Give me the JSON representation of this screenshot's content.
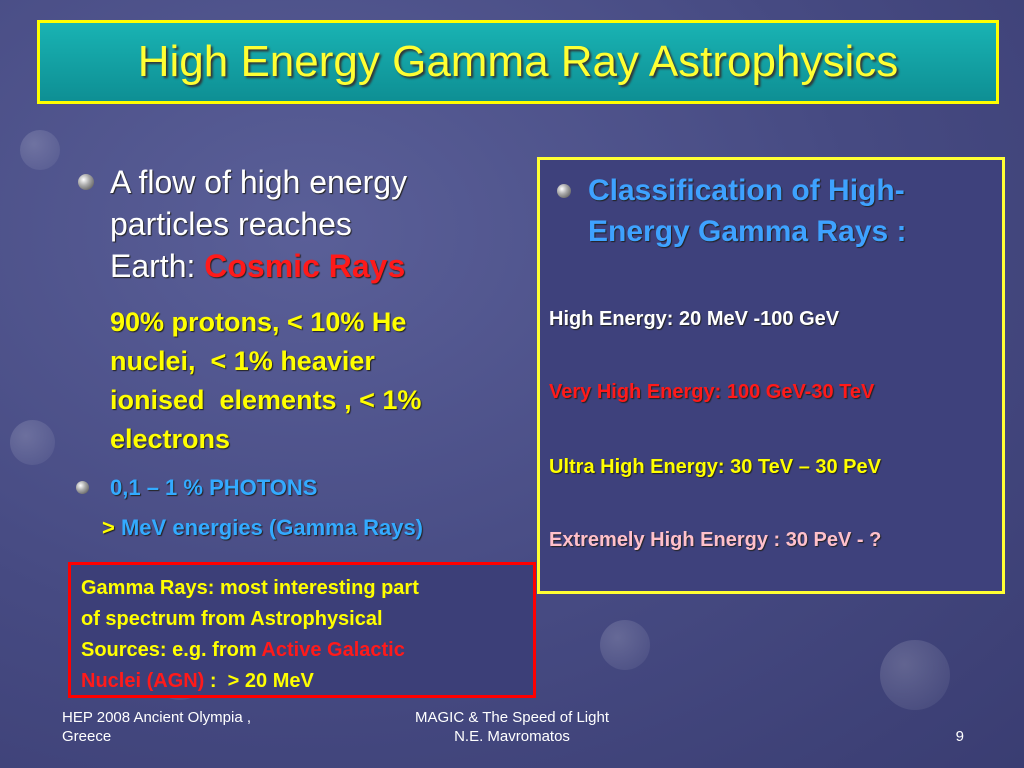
{
  "title": "High Energy Gamma Ray Astrophysics",
  "left": {
    "bullet1": {
      "lines": [
        "A flow of high energy",
        "particles reaches",
        "Earth: "
      ],
      "highlight": "Cosmic Rays",
      "detail": [
        "90% protons, < 10% He",
        "nuclei,  < 1% heavier",
        "ionised  elements , < 1%",
        "electrons"
      ]
    },
    "bullet2": {
      "text": "0,1 – 1 % PHOTONS",
      "sub_symbol": ">",
      "sub_text": "MeV energies (Gamma Rays)"
    }
  },
  "note_box": {
    "lines": [
      "Gamma Rays: most interesting part",
      "of spectrum from Astrophysical",
      "Sources: e.g. from "
    ],
    "highlight_1": "Active Galactic",
    "highlight_2": "Nuclei (AGN)",
    "tail": " :  > 20 MeV"
  },
  "classification": {
    "heading": [
      "Classification of High-",
      "Energy Gamma Rays :"
    ],
    "items": [
      "High Energy: 20 MeV -100 GeV",
      "Very High Energy: 100 GeV-30 TeV",
      "Ultra High Energy: 30 TeV – 30 PeV",
      "Extremely High Energy : 30 PeV - ?"
    ]
  },
  "footer": {
    "left": [
      "HEP 2008 Ancient Olympia ,",
      "Greece"
    ],
    "center": [
      "MAGIC & The Speed of Light",
      "N.E. Mavromatos"
    ],
    "page": "9"
  }
}
